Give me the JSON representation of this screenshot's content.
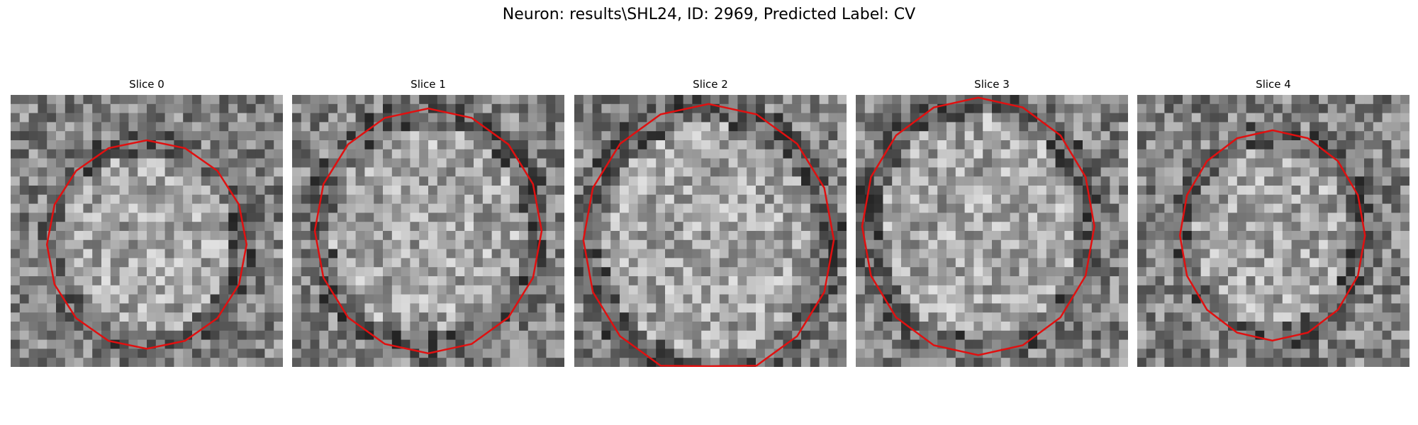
{
  "figure": {
    "title": "Neuron: results\\SHL24, ID: 2969, Predicted Label: CV"
  },
  "panels": [
    {
      "label": "Slice 0"
    },
    {
      "label": "Slice 1"
    },
    {
      "label": "Slice 2"
    },
    {
      "label": "Slice 3"
    },
    {
      "label": "Slice 4"
    }
  ],
  "colors": {
    "contour": "#e01010",
    "background": "#ffffff"
  },
  "image": {
    "colormap": "grayscale",
    "grid": "30x30 pixel noise with brighter circular region"
  }
}
